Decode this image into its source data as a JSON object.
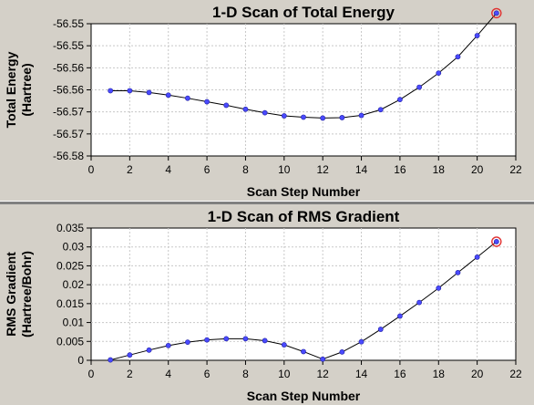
{
  "chart_data": [
    {
      "type": "line",
      "title": "1-D Scan of Total Energy",
      "xlabel": "Scan Step Number",
      "ylabel": "Total Energy",
      "ylabel_units": "(Hartree)",
      "xlim": [
        0,
        22
      ],
      "ylim": [
        -56.58,
        -56.55
      ],
      "x_ticks": [
        "0",
        "2",
        "4",
        "6",
        "8",
        "10",
        "12",
        "14",
        "16",
        "18",
        "20",
        "22"
      ],
      "y_ticks": [
        "-56.58",
        "-56.57",
        "-56.57",
        "-56.56",
        "-56.56",
        "-56.55",
        "-56.55"
      ],
      "grid": true,
      "highlight_last_point": true,
      "series": [
        {
          "x": [
            1,
            2,
            3,
            4,
            5,
            6,
            7,
            8,
            9,
            10,
            11,
            12,
            13,
            14,
            15,
            16,
            17,
            18,
            19,
            20,
            21
          ],
          "values": [
            -56.5652,
            -56.5652,
            -56.5656,
            -56.5662,
            -56.5669,
            -56.5677,
            -56.5685,
            -56.5694,
            -56.5702,
            -56.5709,
            -56.5712,
            -56.5714,
            -56.5713,
            -56.5708,
            -56.5695,
            -56.5672,
            -56.5644,
            -56.5612,
            -56.5575,
            -56.5527,
            -56.5476
          ]
        }
      ]
    },
    {
      "type": "line",
      "title": "1-D Scan of RMS Gradient",
      "xlabel": "Scan Step Number",
      "ylabel": "RMS Gradient",
      "ylabel_units": "(Hartree/Bohr)",
      "xlim": [
        0,
        22
      ],
      "ylim": [
        0,
        0.035
      ],
      "x_ticks": [
        "0",
        "2",
        "4",
        "6",
        "8",
        "10",
        "12",
        "14",
        "16",
        "18",
        "20",
        "22"
      ],
      "y_ticks": [
        "0",
        "0.005",
        "0.01",
        "0.015",
        "0.02",
        "0.025",
        "0.03",
        "0.035"
      ],
      "grid": true,
      "highlight_last_point": true,
      "series": [
        {
          "x": [
            1,
            2,
            3,
            4,
            5,
            6,
            7,
            8,
            9,
            10,
            11,
            12,
            13,
            14,
            15,
            16,
            17,
            18,
            19,
            20,
            21
          ],
          "values": [
            0.0001,
            0.0014,
            0.0027,
            0.0039,
            0.0048,
            0.0054,
            0.0057,
            0.0057,
            0.0052,
            0.0041,
            0.0023,
            0.0003,
            0.0022,
            0.0049,
            0.0082,
            0.0117,
            0.0153,
            0.0191,
            0.0232,
            0.0273,
            0.0314
          ]
        }
      ]
    }
  ]
}
